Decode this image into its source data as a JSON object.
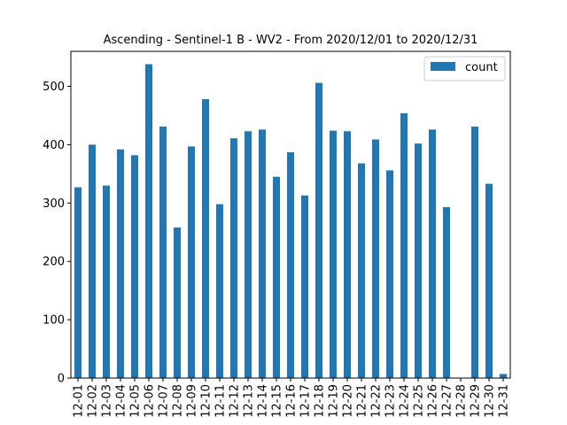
{
  "chart_data": {
    "type": "bar",
    "title": "Ascending - Sentinel-1 B - WV2 - From 2020/12/01 to 2020/12/31",
    "xlabel": "",
    "ylabel": "",
    "ylim": [
      0,
      560
    ],
    "yticks": [
      0,
      100,
      200,
      300,
      400,
      500
    ],
    "legend_position": "top-right",
    "grid": false,
    "bar_color": "#1f77b4",
    "categories": [
      "12-01",
      "12-02",
      "12-03",
      "12-04",
      "12-05",
      "12-06",
      "12-07",
      "12-08",
      "12-09",
      "12-10",
      "12-11",
      "12-12",
      "12-13",
      "12-14",
      "12-15",
      "12-16",
      "12-17",
      "12-18",
      "12-19",
      "12-20",
      "12-21",
      "12-22",
      "12-23",
      "12-24",
      "12-25",
      "12-26",
      "12-27",
      "12-28",
      "12-29",
      "12-30",
      "12-31"
    ],
    "series": [
      {
        "name": "count",
        "values": [
          327,
          400,
          330,
          392,
          382,
          538,
          431,
          258,
          397,
          478,
          298,
          411,
          423,
          426,
          345,
          387,
          313,
          506,
          424,
          423,
          368,
          409,
          356,
          454,
          402,
          426,
          293,
          0,
          431,
          333,
          7
        ]
      }
    ]
  }
}
